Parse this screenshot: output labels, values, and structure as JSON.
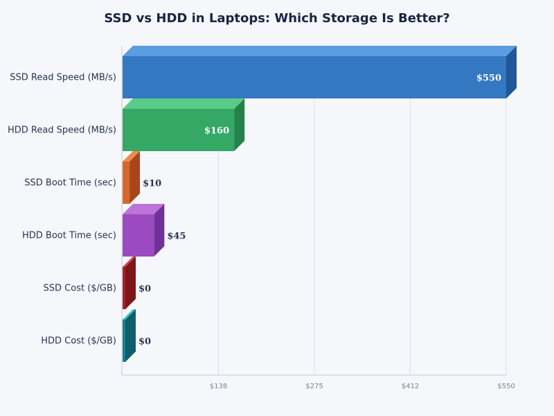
{
  "chart_data": {
    "type": "bar",
    "orientation": "horizontal",
    "style": "3d",
    "title": "SSD vs HDD in Laptops: Which Storage Is Better?",
    "categories": [
      "SSD Read Speed (MB/s)",
      "HDD Read Speed (MB/s)",
      "SSD Boot Time (sec)",
      "HDD Boot Time (sec)",
      "SSD Cost ($/GB)",
      "HDD Cost ($/GB)"
    ],
    "values": [
      550,
      160,
      10,
      45,
      0,
      0
    ],
    "value_labels": [
      "$550",
      "$160",
      "$10",
      "$45",
      "$0",
      "$0"
    ],
    "colors": [
      "#3478c1",
      "#35a866",
      "#d9662c",
      "#9b4bbf",
      "#a52226",
      "#17808f"
    ],
    "top_colors": [
      "#5a9de0",
      "#58cd88",
      "#f08a4c",
      "#bd73d9",
      "#d04248",
      "#3fbccc"
    ],
    "side_colors": [
      "#1f5799",
      "#22824a",
      "#a8461a",
      "#72309a",
      "#7e1518",
      "#0e5f6b"
    ],
    "xlim": [
      0,
      550
    ],
    "xticks": [
      "$138",
      "$275",
      "$412",
      "$550"
    ],
    "xtick_values": [
      137.5,
      275,
      412.5,
      550
    ],
    "grid": true,
    "legend": "none"
  }
}
